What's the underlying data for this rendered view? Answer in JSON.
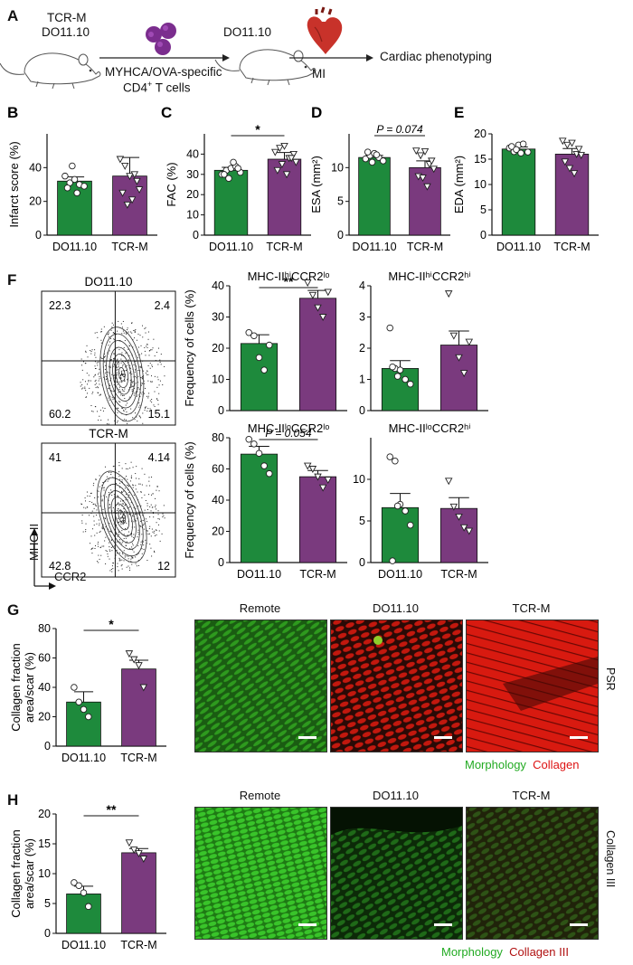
{
  "panels": {
    "A": {
      "label": "A",
      "mouse1": [
        "TCR-M",
        "DO11.10"
      ],
      "cells_label_1": "MYHCA/OVA-specific",
      "cells_label_2": "CD4",
      "cells_label_2_sup": "+",
      "cells_label_2_tail": " T cells",
      "mouse2": "DO11.10",
      "mi": "MI",
      "outcome": "Cardiac phenotyping"
    },
    "G": {
      "label": "G",
      "images": [
        "Remote",
        "DO11.10",
        "TCR-M"
      ],
      "side_label": "PSR",
      "legend_morph": "Morphology",
      "legend_coll": "Collagen"
    },
    "H": {
      "label": "H",
      "images": [
        "Remote",
        "DO11.10",
        "TCR-M"
      ],
      "side_label": "Collagen III",
      "legend_morph": "Morphology",
      "legend_coll": "Collagen III"
    },
    "F": {
      "label": "F",
      "flow": [
        {
          "title": "DO11.10",
          "q": [
            "22.3",
            "2.4",
            "60.2",
            "15.1"
          ]
        },
        {
          "title": "TCR-M",
          "q": [
            "41",
            "4.14",
            "42.8",
            "12"
          ]
        }
      ],
      "ylabel_axis": "MHC-II",
      "xlabel_axis": "CCR2"
    }
  },
  "colors": {
    "green": "#1e8a3c",
    "purple": "#7a3a7e"
  },
  "chart_data": [
    {
      "type": "bar",
      "panel": "B",
      "label": "B",
      "categories": [
        "DO11.10",
        "TCR-M"
      ],
      "values": [
        32,
        35
      ],
      "sem": [
        2.5,
        11
      ],
      "ylabel": "Infarct score (%)",
      "ylim": [
        0,
        60
      ],
      "yticks": [
        0,
        20,
        40
      ],
      "points": [
        [
          35,
          31,
          33,
          30,
          29,
          28,
          41,
          25
        ],
        [
          45,
          41,
          35,
          36,
          27,
          25,
          18,
          21,
          32
        ]
      ]
    },
    {
      "type": "bar",
      "panel": "C",
      "label": "C",
      "categories": [
        "DO11.10",
        "TCR-M"
      ],
      "values": [
        32,
        37.5
      ],
      "sem": [
        1.5,
        3.3
      ],
      "ylabel": "FAC (%)",
      "ylim": [
        0,
        50
      ],
      "yticks": [
        0,
        10,
        20,
        30,
        40
      ],
      "sig": "*",
      "points": [
        [
          30,
          32,
          33,
          34,
          31,
          30,
          28,
          36,
          33
        ],
        [
          41,
          43,
          44,
          38,
          40,
          32,
          35,
          30,
          38,
          36
        ]
      ]
    },
    {
      "type": "bar",
      "panel": "D",
      "label": "D",
      "categories": [
        "DO11.10",
        "TCR-M"
      ],
      "values": [
        11.5,
        10
      ],
      "sem": [
        0.3,
        1
      ],
      "ylabel": "ESA (mm²)",
      "ylim": [
        0,
        15
      ],
      "yticks": [
        0,
        5,
        10
      ],
      "sig": "P = 0.074",
      "points": [
        [
          11.3,
          11.8,
          12.1,
          11.5,
          11.0,
          12.3,
          10.8,
          11.9
        ],
        [
          12.5,
          11.8,
          12.4,
          10.5,
          9.8,
          8.7,
          8.5,
          7.2,
          11.0
        ]
      ]
    },
    {
      "type": "bar",
      "panel": "E",
      "label": "E",
      "categories": [
        "DO11.10",
        "TCR-M"
      ],
      "values": [
        17,
        16
      ],
      "sem": [
        0.4,
        1.1
      ],
      "ylabel": "EDA (mm²)",
      "ylim": [
        0,
        20
      ],
      "yticks": [
        0,
        5,
        10,
        15,
        20
      ],
      "points": [
        [
          17.2,
          16.5,
          17.8,
          18.0,
          16.4,
          17.5,
          16.9,
          16.2
        ],
        [
          18.6,
          17.8,
          18.2,
          16.0,
          15.8,
          14.5,
          13.2,
          12.2,
          17.0
        ]
      ]
    },
    {
      "type": "bar",
      "panel": "F1",
      "label": "",
      "categories": [
        "",
        ""
      ],
      "values": [
        21.5,
        36
      ],
      "sem": [
        2.8,
        2.5
      ],
      "ylabel": "Frequency of cells (%)",
      "ylim": [
        0,
        40
      ],
      "yticks": [
        0,
        10,
        20,
        30,
        40
      ],
      "sig": "**",
      "title": "MHC-IIʰⁱCCR2ˡᵒ",
      "points": [
        [
          25,
          24,
          17,
          13,
          21
        ],
        [
          41,
          37,
          33,
          30,
          38
        ]
      ]
    },
    {
      "type": "bar",
      "panel": "F2",
      "label": "",
      "categories": [
        "",
        ""
      ],
      "values": [
        1.35,
        2.1
      ],
      "sem": [
        0.25,
        0.45
      ],
      "ylabel": "",
      "ylim": [
        0,
        4
      ],
      "yticks": [
        0,
        1,
        2,
        3,
        4
      ],
      "title": "MHC-IIʰⁱCCR2ʰⁱ",
      "points": [
        [
          2.65,
          1.35,
          1.3,
          1.0,
          0.85,
          1.4,
          1.1
        ],
        [
          3.75,
          2.4,
          1.7,
          1.2,
          2.2
        ]
      ]
    },
    {
      "type": "bar",
      "panel": "F3",
      "label": "",
      "categories": [
        "DO11.10",
        "TCR-M"
      ],
      "values": [
        69.5,
        55
      ],
      "sem": [
        5,
        4
      ],
      "ylabel": "Frequency of cells (%)",
      "ylim": [
        0,
        80
      ],
      "yticks": [
        0,
        20,
        40,
        60,
        80
      ],
      "sig": "P = 0.054",
      "title": "MHC-IIˡᵒCCR2ˡᵒ",
      "points": [
        [
          79,
          76,
          70,
          62,
          57
        ],
        [
          62,
          60,
          55,
          48,
          53
        ]
      ]
    },
    {
      "type": "bar",
      "panel": "F4",
      "label": "",
      "categories": [
        "DO11.10",
        "TCR-M"
      ],
      "values": [
        6.6,
        6.5
      ],
      "sem": [
        1.7,
        1.3
      ],
      "ylabel": "",
      "ylim": [
        0,
        15
      ],
      "yticks": [
        0,
        5,
        10
      ],
      "title": "MHC-IIˡᵒCCR2ʰⁱ",
      "points": [
        [
          12.7,
          12.2,
          7.0,
          6.2,
          4.5,
          0.2,
          6.8
        ],
        [
          9.8,
          6.7,
          5.5,
          4.2,
          3.8
        ]
      ]
    },
    {
      "type": "bar",
      "panel": "G",
      "label": "",
      "categories": [
        "DO11.10",
        "TCR-M"
      ],
      "values": [
        30,
        52.5
      ],
      "sem": [
        7,
        6
      ],
      "ylabel": "Collagen fraction area/scar (%)",
      "ylim": [
        0,
        80
      ],
      "yticks": [
        0,
        20,
        40,
        60,
        80
      ],
      "sig": "*",
      "points": [
        [
          40,
          30,
          25,
          20
        ],
        [
          63,
          59,
          55,
          40
        ]
      ]
    },
    {
      "type": "bar",
      "panel": "H",
      "label": "",
      "categories": [
        "DO11.10",
        "TCR-M"
      ],
      "values": [
        6.6,
        13.5
      ],
      "sem": [
        1.3,
        0.7
      ],
      "ylabel": "Collagen fraction area/scar (%)",
      "ylim": [
        0,
        20
      ],
      "yticks": [
        0,
        5,
        10,
        15,
        20
      ],
      "sig": "**",
      "points": [
        [
          8.5,
          8.0,
          6.8,
          4.5
        ],
        [
          15.2,
          14.0,
          13.4,
          12.5
        ]
      ]
    }
  ]
}
